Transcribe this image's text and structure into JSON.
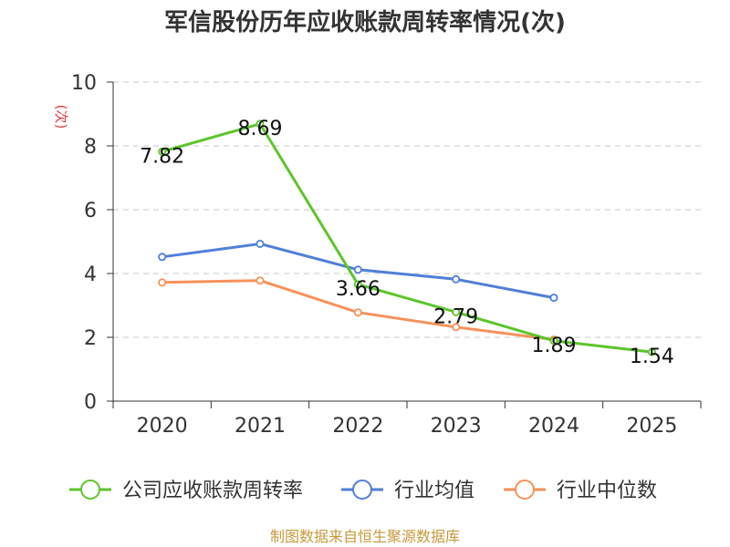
{
  "chart_data": {
    "type": "line",
    "title": "军信股份历年应收账款周转率情况(次)",
    "ylabel": "(次)",
    "xlabel": "",
    "categories": [
      "2020",
      "2021",
      "2022",
      "2023",
      "2024",
      "2025"
    ],
    "ylim": [
      0,
      10
    ],
    "yticks": [
      0,
      2,
      4,
      6,
      8,
      10
    ],
    "grid": true,
    "legend_position": "bottom",
    "series": [
      {
        "name": "公司应收账款周转率",
        "color": "#5cc52b",
        "values": [
          7.82,
          8.69,
          3.66,
          2.79,
          1.89,
          1.54
        ],
        "labels": [
          "7.82",
          "8.69",
          "3.66",
          "2.79",
          "1.89",
          "1.54"
        ]
      },
      {
        "name": "行业均值",
        "color": "#4f7fd8",
        "values": [
          4.52,
          4.93,
          4.12,
          3.82,
          3.24,
          null
        ]
      },
      {
        "name": "行业中位数",
        "color": "#f7915a",
        "values": [
          3.72,
          3.78,
          2.78,
          2.32,
          1.93,
          null
        ]
      }
    ],
    "source": "制图数据来自恒生聚源数据库"
  }
}
